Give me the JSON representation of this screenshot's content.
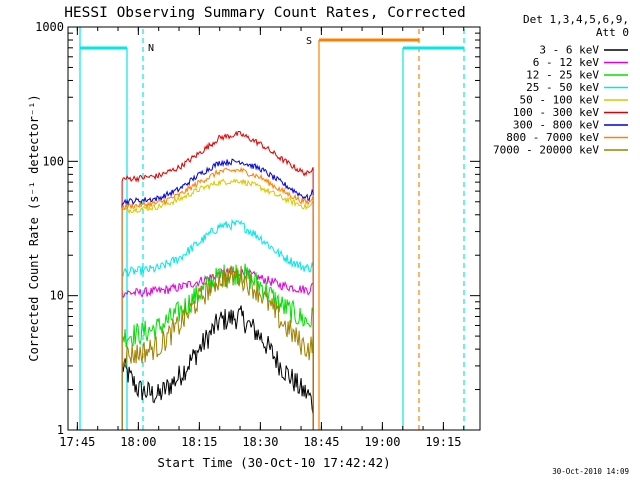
{
  "chart_data": {
    "type": "line",
    "title": "HESSI Observing Summary Count Rates, Corrected",
    "xlabel": "Start Time (30-Oct-10 17:42:42)",
    "ylabel": "Corrected Count Rate (s⁻¹ detector⁻¹)",
    "y_scale": "log",
    "xlim": [
      "17:42:42",
      "19:24:00"
    ],
    "ylim": [
      1,
      1000
    ],
    "x_ticks": [
      "17:45",
      "18:00",
      "18:15",
      "18:30",
      "18:45",
      "19:00",
      "19:15"
    ],
    "y_ticks": [
      {
        "value": 1,
        "label": "1"
      },
      {
        "value": 10,
        "label": "10"
      },
      {
        "value": 100,
        "label": "100"
      },
      {
        "value": 1000,
        "label": "1000"
      }
    ],
    "grid": false,
    "legend_position": "right",
    "legend_header": [
      "Det 1,3,4,5,6,9,",
      "Att 0"
    ],
    "series": [
      {
        "name": "3 - 6 keV",
        "color": "#000000",
        "x": [
          "17:56:00",
          "18:00:00",
          "18:05:00",
          "18:10:00",
          "18:15:00",
          "18:20:00",
          "18:25:00",
          "18:30:00",
          "18:35:00",
          "18:40:00",
          "18:42:00",
          "18:43:00"
        ],
        "y": [
          3.0,
          2.0,
          1.8,
          2.5,
          4.0,
          6.5,
          7.0,
          5.0,
          3.0,
          2.0,
          1.8,
          1.5
        ]
      },
      {
        "name": "6 - 12 keV",
        "color": "#e000e0",
        "x": [
          "17:56:00",
          "18:00:00",
          "18:05:00",
          "18:10:00",
          "18:15:00",
          "18:20:00",
          "18:25:00",
          "18:30:00",
          "18:35:00",
          "18:40:00",
          "18:42:00",
          "18:43:00"
        ],
        "y": [
          10.5,
          10.5,
          10.8,
          11.5,
          12.8,
          14.5,
          15.0,
          13.5,
          12.0,
          11.2,
          11.0,
          12.0
        ]
      },
      {
        "name": "12 - 25 keV",
        "color": "#00e000",
        "x": [
          "17:56:00",
          "18:00:00",
          "18:05:00",
          "18:10:00",
          "18:15:00",
          "18:20:00",
          "18:25:00",
          "18:30:00",
          "18:35:00",
          "18:40:00",
          "18:42:00",
          "18:43:00"
        ],
        "y": [
          5.0,
          5.2,
          5.8,
          7.5,
          10.5,
          14.0,
          15.0,
          12.0,
          8.5,
          6.8,
          6.3,
          7.0
        ]
      },
      {
        "name": "25 - 50 keV",
        "color": "#00e8e8",
        "x": [
          "17:56:00",
          "18:00:00",
          "18:05:00",
          "18:10:00",
          "18:15:00",
          "18:20:00",
          "18:25:00",
          "18:30:00",
          "18:35:00",
          "18:40:00",
          "18:42:00",
          "18:43:00"
        ],
        "y": [
          15.0,
          15.2,
          16.0,
          19.0,
          25.0,
          33.0,
          34.0,
          27.0,
          20.0,
          16.5,
          16.0,
          17.0
        ]
      },
      {
        "name": "50 - 100 keV",
        "color": "#d8c800",
        "x": [
          "17:56:00",
          "18:00:00",
          "18:05:00",
          "18:10:00",
          "18:15:00",
          "18:20:00",
          "18:25:00",
          "18:30:00",
          "18:35:00",
          "18:40:00",
          "18:42:00",
          "18:43:00"
        ],
        "y": [
          43.0,
          44.0,
          46.0,
          52.0,
          62.0,
          70.0,
          72.0,
          64.0,
          54.0,
          47.0,
          45.0,
          50.0
        ]
      },
      {
        "name": "100 - 300 keV",
        "color": "#e00000",
        "x": [
          "17:56:00",
          "18:00:00",
          "18:05:00",
          "18:10:00",
          "18:15:00",
          "18:20:00",
          "18:25:00",
          "18:30:00",
          "18:35:00",
          "18:40:00",
          "18:42:00",
          "18:43:00"
        ],
        "y": [
          74.0,
          75.0,
          78.0,
          90.0,
          115.0,
          150.0,
          160.0,
          135.0,
          105.0,
          84.0,
          80.0,
          95.0
        ]
      },
      {
        "name": "300 - 800 keV",
        "color": "#0000e0",
        "x": [
          "17:56:00",
          "18:00:00",
          "18:05:00",
          "18:10:00",
          "18:15:00",
          "18:20:00",
          "18:25:00",
          "18:30:00",
          "18:35:00",
          "18:40:00",
          "18:42:00",
          "18:43:00"
        ],
        "y": [
          50.0,
          51.0,
          53.0,
          62.0,
          80.0,
          98.0,
          100.0,
          88.0,
          70.0,
          56.0,
          53.0,
          60.0
        ]
      },
      {
        "name": "800 - 7000 keV",
        "color": "#ff8000",
        "x": [
          "17:56:00",
          "18:00:00",
          "18:05:00",
          "18:10:00",
          "18:15:00",
          "18:20:00",
          "18:25:00",
          "18:30:00",
          "18:35:00",
          "18:40:00",
          "18:42:00",
          "18:43:00"
        ],
        "y": [
          46.0,
          47.0,
          49.0,
          56.0,
          70.0,
          84.0,
          86.0,
          76.0,
          61.0,
          51.0,
          49.0,
          55.0
        ]
      },
      {
        "name": "7000 - 20000 keV",
        "color": "#a08000",
        "x": [
          "17:56:00",
          "18:00:00",
          "18:05:00",
          "18:10:00",
          "18:15:00",
          "18:20:00",
          "18:25:00",
          "18:30:00",
          "18:35:00",
          "18:40:00",
          "18:42:00",
          "18:43:00"
        ],
        "y": [
          3.6,
          3.7,
          4.2,
          6.0,
          9.5,
          13.5,
          14.0,
          10.5,
          6.5,
          4.4,
          4.0,
          4.5
        ]
      }
    ],
    "annotations": [
      {
        "label": "N",
        "color": "#00e8e8"
      },
      {
        "label": "S",
        "color": "#ff8000"
      }
    ],
    "footer_timestamp": "30-Oct-2010 14:09"
  }
}
